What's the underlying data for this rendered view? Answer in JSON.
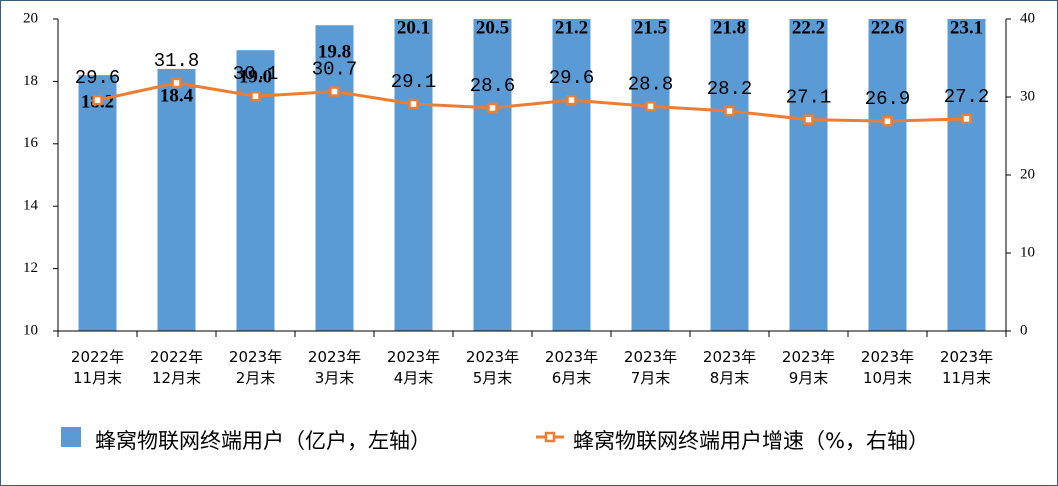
{
  "chart_data": {
    "type": "bar",
    "categories": [
      "2022年\n11月末",
      "2022年\n12月末",
      "2023年\n2月末",
      "2023年\n3月末",
      "2023年\n4月末",
      "2023年\n5月末",
      "2023年\n6月末",
      "2023年\n7月末",
      "2023年\n8月末",
      "2023年\n9月末",
      "2023年\n10月末",
      "2023年\n11月末"
    ],
    "series": [
      {
        "name": "蜂窝物联网终端用户（亿户，左轴）",
        "type": "bar",
        "color": "#5b9bd5",
        "values": [
          18.2,
          18.4,
          19.0,
          19.8,
          20.1,
          20.5,
          21.2,
          21.5,
          21.8,
          22.2,
          22.6,
          23.1
        ],
        "value_labels": [
          "18.2",
          "18.4",
          "19.0",
          "19.8",
          "20.1",
          "20.5",
          "21.2",
          "21.5",
          "21.8",
          "22.2",
          "22.6",
          "23.1"
        ]
      },
      {
        "name": "蜂窝物联网终端用户增速（%，右轴）",
        "type": "line",
        "axis": "y2",
        "color": "#ed7d31",
        "values": [
          29.6,
          31.8,
          30.1,
          30.7,
          29.1,
          28.6,
          29.6,
          28.8,
          28.2,
          27.1,
          26.9,
          27.2
        ]
      }
    ],
    "ylim": [
      10,
      20
    ],
    "yticks": [
      10,
      12,
      14,
      16,
      18,
      20
    ],
    "y2lim": [
      0,
      40
    ],
    "y2ticks": [
      0,
      10,
      20,
      30,
      40
    ],
    "legend": "bottom",
    "grid": false
  }
}
